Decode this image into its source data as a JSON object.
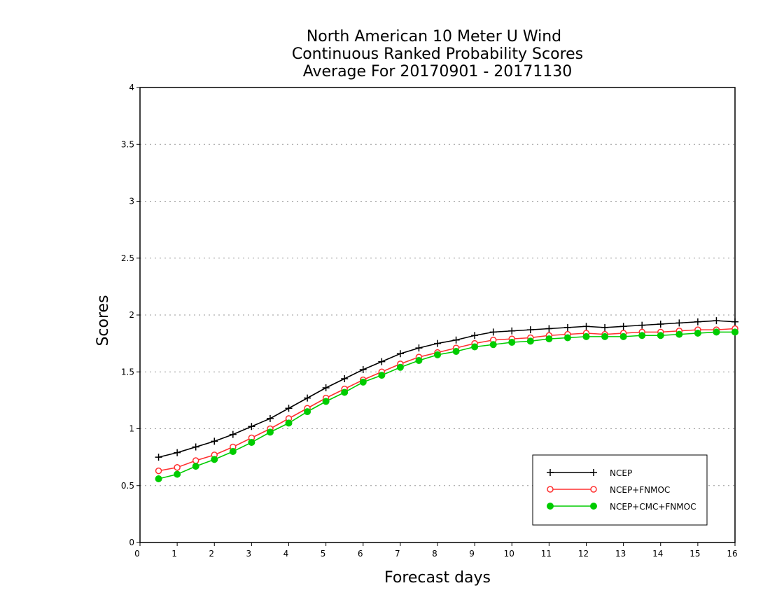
{
  "chart_data": {
    "type": "line",
    "title": [
      "North American 10 Meter U Wind",
      "Continuous Ranked Probability Scores",
      "Average For 20170901 - 20171130"
    ],
    "xlabel": "Forecast days",
    "ylabel": "Scores",
    "xlim": [
      0,
      16
    ],
    "ylim": [
      0,
      4
    ],
    "xticks": [
      "0",
      "1",
      "2",
      "3",
      "4",
      "5",
      "6",
      "7",
      "8",
      "9",
      "10",
      "11",
      "12",
      "13",
      "14",
      "15",
      "16"
    ],
    "yticks": [
      "0",
      "0.5",
      "1",
      "1.5",
      "2",
      "2.5",
      "3",
      "3.5",
      "4"
    ],
    "grid": "horizontal dotted",
    "legend_position": "bottom-right",
    "x": [
      0.5,
      1,
      1.5,
      2,
      2.5,
      3,
      3.5,
      4,
      4.5,
      5,
      5.5,
      6,
      6.5,
      7,
      7.5,
      8,
      8.5,
      9,
      9.5,
      10,
      10.5,
      11,
      11.5,
      12,
      12.5,
      13,
      13.5,
      14,
      14.5,
      15,
      15.5,
      16
    ],
    "series": [
      {
        "name": "NCEP",
        "color": "#000000",
        "marker": "plus",
        "values": [
          0.75,
          0.79,
          0.84,
          0.89,
          0.95,
          1.02,
          1.09,
          1.18,
          1.27,
          1.36,
          1.44,
          1.52,
          1.59,
          1.66,
          1.71,
          1.75,
          1.78,
          1.82,
          1.85,
          1.86,
          1.87,
          1.88,
          1.89,
          1.9,
          1.89,
          1.9,
          1.91,
          1.92,
          1.93,
          1.94,
          1.95,
          1.94
        ]
      },
      {
        "name": "NCEP+FNMOC",
        "color": "#ff3030",
        "marker": "open-circle",
        "values": [
          0.63,
          0.66,
          0.72,
          0.77,
          0.84,
          0.92,
          1.0,
          1.09,
          1.18,
          1.27,
          1.35,
          1.43,
          1.5,
          1.57,
          1.63,
          1.67,
          1.71,
          1.75,
          1.78,
          1.79,
          1.8,
          1.82,
          1.83,
          1.84,
          1.83,
          1.84,
          1.85,
          1.85,
          1.86,
          1.87,
          1.87,
          1.88
        ]
      },
      {
        "name": "NCEP+CMC+FNMOC",
        "color": "#00cc00",
        "marker": "filled-circle",
        "values": [
          0.56,
          0.6,
          0.67,
          0.73,
          0.8,
          0.88,
          0.97,
          1.05,
          1.15,
          1.24,
          1.32,
          1.41,
          1.47,
          1.54,
          1.6,
          1.65,
          1.68,
          1.72,
          1.74,
          1.76,
          1.77,
          1.79,
          1.8,
          1.81,
          1.81,
          1.81,
          1.82,
          1.82,
          1.83,
          1.84,
          1.85,
          1.85
        ]
      }
    ]
  }
}
